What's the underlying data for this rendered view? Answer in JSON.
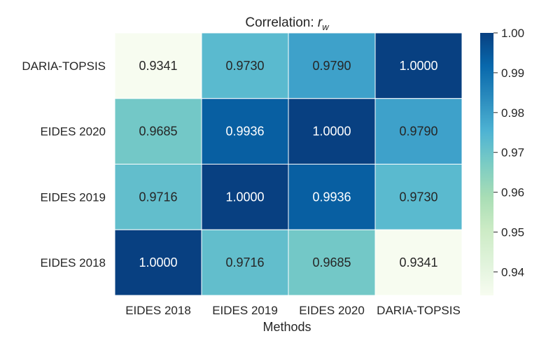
{
  "chart_data": {
    "type": "heatmap",
    "title_text": "Correlation: ",
    "title_symbol": "r",
    "title_subscript": "w",
    "xlabel": "Methods",
    "ylabel": "",
    "x_categories": [
      "EIDES 2018",
      "EIDES 2019",
      "EIDES 2020",
      "DARIA-TOPSIS"
    ],
    "y_categories": [
      "DARIA-TOPSIS",
      "EIDES 2020",
      "EIDES 2019",
      "EIDES 2018"
    ],
    "values": [
      [
        0.9341,
        0.973,
        0.979,
        1.0
      ],
      [
        0.9685,
        0.9936,
        1.0,
        0.979
      ],
      [
        0.9716,
        1.0,
        0.9936,
        0.973
      ],
      [
        1.0,
        0.9716,
        0.9685,
        0.9341
      ]
    ],
    "value_labels": [
      [
        "0.9341",
        "0.9730",
        "0.9790",
        "1.0000"
      ],
      [
        "0.9685",
        "0.9936",
        "1.0000",
        "0.9790"
      ],
      [
        "0.9716",
        "1.0000",
        "0.9936",
        "0.9730"
      ],
      [
        "1.0000",
        "0.9716",
        "0.9685",
        "0.9341"
      ]
    ],
    "colormap": "GnBu",
    "colormap_stops": [
      "#f7fcf0",
      "#e0f3db",
      "#ccebc5",
      "#a8ddb5",
      "#7bccc4",
      "#4eb3d3",
      "#2b8cbe",
      "#0868ac",
      "#084081"
    ],
    "vmin": 0.9341,
    "vmax": 1.0,
    "colorbar_ticks": [
      0.94,
      0.95,
      0.96,
      0.97,
      0.98,
      0.99,
      1.0
    ],
    "colorbar_tick_labels": [
      "0.94",
      "0.95",
      "0.96",
      "0.97",
      "0.98",
      "0.99",
      "1.00"
    ],
    "grid_line_color": "#ffffff"
  }
}
